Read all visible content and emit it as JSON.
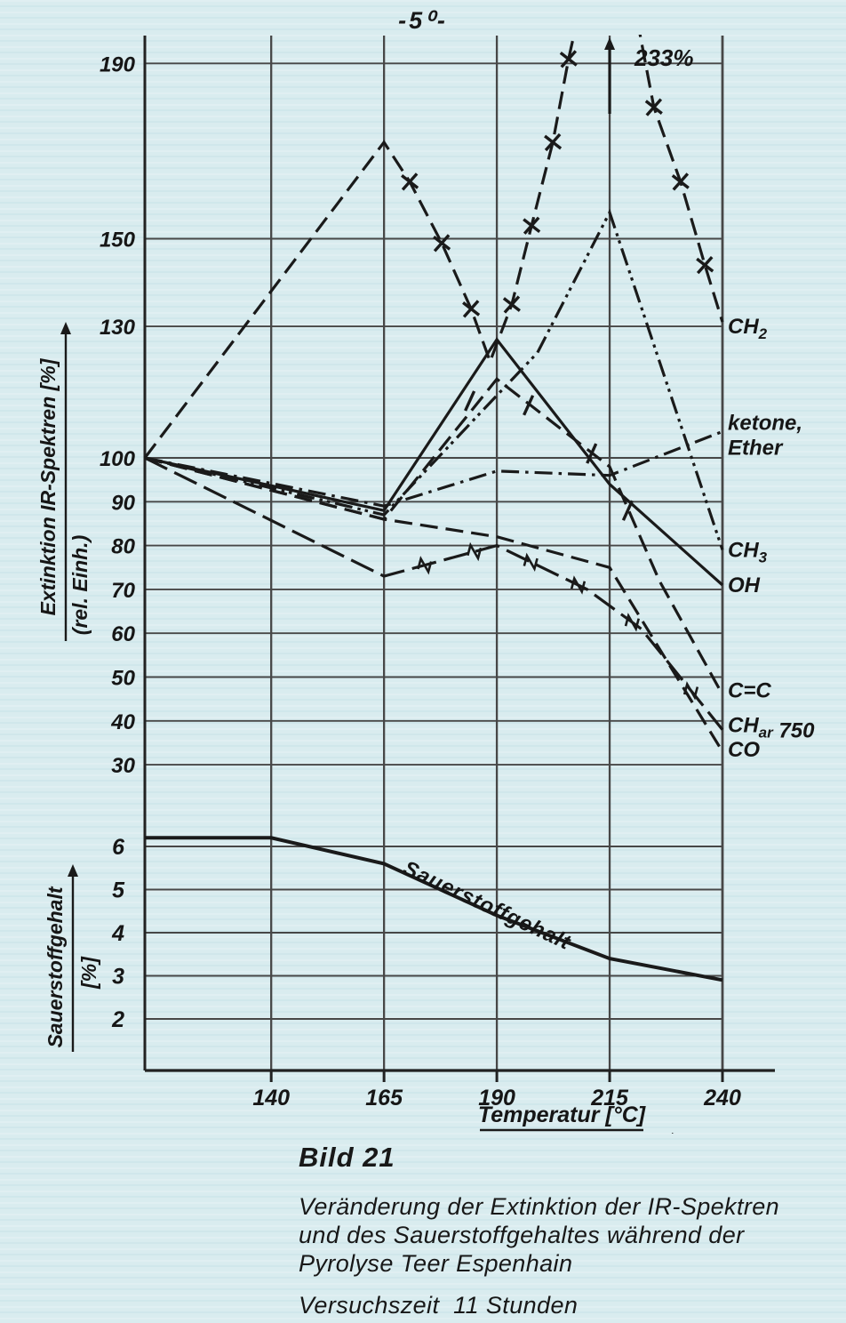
{
  "page": {
    "number": "-5⁰-",
    "colors": {
      "background": "#d9ecef",
      "ink": "#1a1a1a",
      "grid": "#474747",
      "border": "#222222"
    }
  },
  "caption": {
    "figure_label": "Bild 21",
    "lines": [
      "Veränderung der Extinktion der IR-Spektren",
      "und des Sauerstoffgehaltes während der",
      "Pyrolyse Teer Espenhain"
    ],
    "experiment_time": "Versuchszeit  11 Stunden"
  },
  "chart_data": [
    {
      "type": "line",
      "title": "",
      "xlabel": "Temperatur [°C]",
      "ylabel": "Extinktion IR-Spektren [%]",
      "ylabel_sub": "(rel. Einh.)",
      "grid": true,
      "legend_position": "labels-at-right-edge",
      "xlim": [
        112,
        240
      ],
      "ylim": [
        22,
        196
      ],
      "x_ticks": [
        140,
        165,
        190,
        215,
        240
      ],
      "y_ticks": [
        190,
        150,
        130,
        100,
        90,
        80,
        70,
        60,
        50,
        40,
        30
      ],
      "off_scale": {
        "text": "233%",
        "temp": 215,
        "series": "CH2"
      },
      "series": [
        {
          "name": "CH2",
          "label": "CH2",
          "label_parts": [
            {
              "t": "CH"
            },
            {
              "t": "2",
              "sub": true
            }
          ],
          "label_v": 130,
          "line": "long-dash",
          "marker": "x",
          "points": [
            [
              112,
              100
            ],
            [
              165,
              172
            ],
            [
              170.7,
              163
            ],
            [
              177.8,
              149
            ],
            [
              184.3,
              134
            ],
            [
              188.5,
              122
            ],
            [
              193.3,
              135
            ],
            [
              197.7,
              153
            ],
            [
              202.4,
              172
            ],
            [
              205.9,
              191
            ],
            [
              215,
              233
            ],
            [
              224.8,
              180
            ],
            [
              230.7,
              163
            ],
            [
              236.1,
              144
            ],
            [
              240,
              131
            ]
          ],
          "markers": [
            [
              170.7,
              163
            ],
            [
              177.8,
              149
            ],
            [
              184.3,
              134
            ],
            [
              193.3,
              135
            ],
            [
              197.7,
              153
            ],
            [
              202.4,
              172
            ],
            [
              205.9,
              191
            ],
            [
              224.8,
              180
            ],
            [
              230.7,
              163
            ],
            [
              236.1,
              144
            ]
          ]
        },
        {
          "name": "ketone-ether",
          "label": "ketone, Ether",
          "label_lines": [
            "ketone,",
            "Ether"
          ],
          "label_v": 108,
          "line": "dash-dot",
          "marker": null,
          "points": [
            [
              112,
              100
            ],
            [
              165,
              89
            ],
            [
              190,
              97
            ],
            [
              215,
              96
            ],
            [
              240,
              106
            ]
          ]
        },
        {
          "name": "CH3",
          "label": "CH3",
          "label_parts": [
            {
              "t": "CH"
            },
            {
              "t": "3",
              "sub": true
            }
          ],
          "label_v": 79,
          "line": "dash-dot-dot",
          "marker": null,
          "points": [
            [
              112,
              100
            ],
            [
              165,
              87
            ],
            [
              187,
              111
            ],
            [
              199,
              124
            ],
            [
              215,
              156
            ],
            [
              240,
              79
            ]
          ]
        },
        {
          "name": "OH",
          "label": "OH",
          "label_v": 71,
          "line": "solid",
          "marker": null,
          "points": [
            [
              112,
              100
            ],
            [
              165,
              88
            ],
            [
              190,
              127
            ],
            [
              215,
              94
            ],
            [
              240,
              71
            ]
          ]
        },
        {
          "name": "C=C",
          "label": "C=C",
          "label_v": 47,
          "line": "long-dash",
          "marker": "slash",
          "points": [
            [
              112,
              100
            ],
            [
              165,
              86
            ],
            [
              190,
              118
            ],
            [
              215,
              98
            ],
            [
              226,
              72
            ],
            [
              240,
              46
            ]
          ],
          "markers": [
            [
              184,
              113
            ],
            [
              197,
              112
            ],
            [
              211,
              101
            ],
            [
              219,
              88
            ]
          ]
        },
        {
          "name": "CHar750",
          "label": "CHar 750",
          "label_parts": [
            {
              "t": "CH"
            },
            {
              "t": "ar",
              "sub": true
            },
            {
              "t": " 750"
            }
          ],
          "label_v": 39,
          "line": "dash-long",
          "marker": "n",
          "points": [
            [
              112,
              100
            ],
            [
              165,
              73
            ],
            [
              190,
              80
            ],
            [
              210,
              70
            ],
            [
              222,
              61
            ],
            [
              240,
              38
            ]
          ],
          "markers": [
            [
              174,
              75.5
            ],
            [
              185,
              78.6
            ],
            [
              197.5,
              76.2
            ],
            [
              208,
              71
            ],
            [
              220,
              62.5
            ],
            [
              233,
              46.9
            ]
          ]
        },
        {
          "name": "CO",
          "label": "CO",
          "label_v": 33.5,
          "line": "long-dash",
          "marker": null,
          "points": [
            [
              112,
              100
            ],
            [
              165,
              86
            ],
            [
              190,
              82
            ],
            [
              215,
              75
            ],
            [
              240,
              33
            ]
          ]
        }
      ]
    },
    {
      "type": "line",
      "title": "",
      "xlabel": "Temperatur [°C]",
      "ylabel": "Sauerstoffgehalt",
      "ylabel_sub": "[%]",
      "grid": true,
      "xlim": [
        112,
        240
      ],
      "ylim": [
        1.2,
        6.6
      ],
      "x_ticks": [
        140,
        165,
        190,
        215,
        240
      ],
      "y_ticks": [
        6,
        5,
        4,
        3,
        2
      ],
      "series": [
        {
          "name": "Sauerstoffgehalt",
          "label": "Sauerstoffgehalt",
          "line": "solid",
          "marker": null,
          "points": [
            [
              112,
              6.2
            ],
            [
              140,
              6.2
            ],
            [
              165,
              5.6
            ],
            [
              190,
              4.4
            ],
            [
              215,
              3.4
            ],
            [
              240,
              2.9
            ]
          ]
        }
      ]
    }
  ]
}
